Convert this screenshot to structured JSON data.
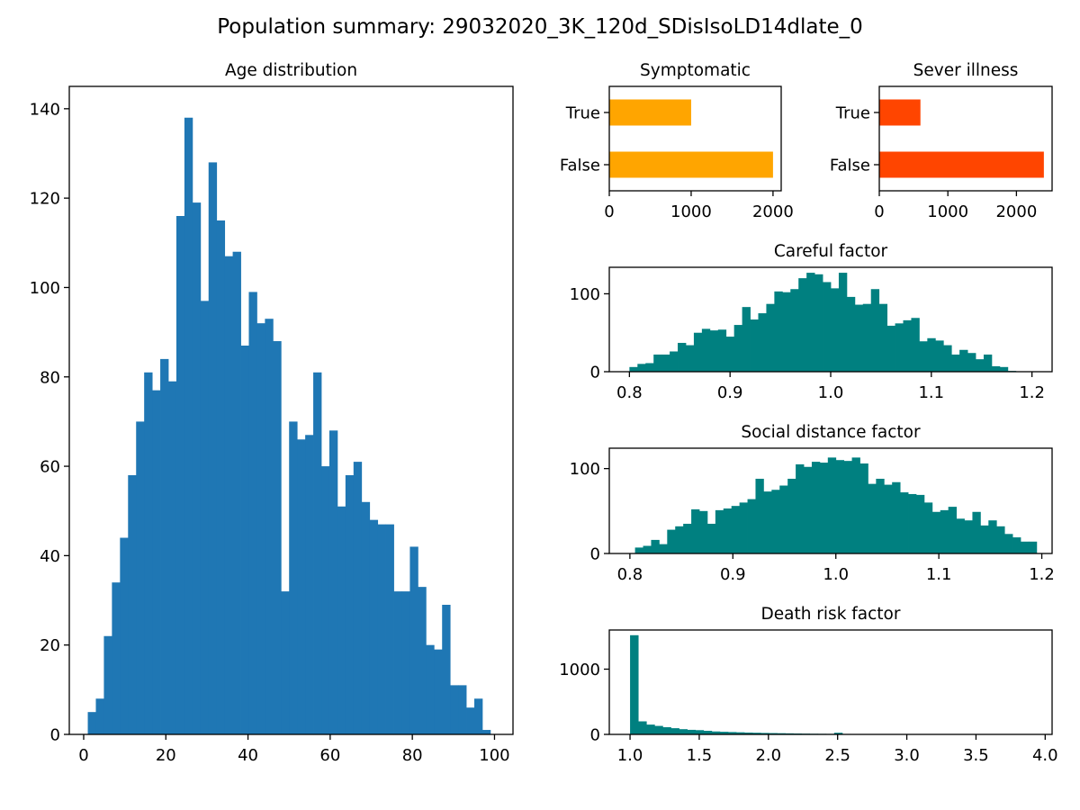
{
  "figure": {
    "title": "Population summary: 29032020_3K_120d_SDisIsoLD14dlate_0"
  },
  "chart_data": [
    {
      "id": "age",
      "type": "bar",
      "subtype": "histogram",
      "title": "Age distribution",
      "color": "#1f77b4",
      "xlim": [
        -3.5,
        104.5
      ],
      "ylim": [
        0,
        145
      ],
      "xticks": [
        0,
        20,
        40,
        60,
        80,
        100
      ],
      "yticks": [
        0,
        20,
        40,
        60,
        80,
        100,
        120,
        140
      ],
      "bin_start": 1,
      "bin_width": 1.96,
      "values": [
        5,
        8,
        22,
        34,
        44,
        58,
        70,
        81,
        77,
        84,
        79,
        116,
        138,
        119,
        97,
        128,
        115,
        107,
        108,
        87,
        99,
        92,
        93,
        88,
        32,
        70,
        66,
        67,
        81,
        60,
        68,
        51,
        58,
        61,
        52,
        48,
        47,
        47,
        32,
        32,
        42,
        33,
        20,
        19,
        29,
        11,
        11,
        6,
        8,
        1
      ]
    },
    {
      "id": "symptomatic",
      "type": "bar",
      "orientation": "horizontal",
      "title": "Symptomatic",
      "color": "#ffa500",
      "categories": [
        "True",
        "False"
      ],
      "values": [
        1000,
        2000
      ],
      "xlim": [
        0,
        2100
      ],
      "xticks": [
        0,
        1000,
        2000
      ]
    },
    {
      "id": "severe",
      "type": "bar",
      "orientation": "horizontal",
      "title": "Sever illness",
      "color": "#ff4500",
      "categories": [
        "True",
        "False"
      ],
      "values": [
        600,
        2400
      ],
      "xlim": [
        0,
        2520
      ],
      "xticks": [
        0,
        1000,
        2000
      ]
    },
    {
      "id": "careful",
      "type": "bar",
      "subtype": "histogram",
      "title": "Careful factor",
      "color": "#008080",
      "xlim": [
        0.78,
        1.22
      ],
      "ylim": [
        0,
        134
      ],
      "xticks": [
        0.8,
        0.9,
        1.0,
        1.1,
        1.2
      ],
      "xtick_labels": [
        "0.8",
        "0.9",
        "1.0",
        "1.1",
        "1.2"
      ],
      "yticks": [
        0,
        100
      ],
      "bin_start": 0.8,
      "bin_width": 0.008,
      "values": [
        6,
        10,
        11,
        22,
        22,
        26,
        37,
        34,
        50,
        55,
        53,
        54,
        45,
        60,
        83,
        67,
        75,
        87,
        103,
        102,
        106,
        120,
        127,
        125,
        115,
        107,
        127,
        96,
        86,
        87,
        106,
        87,
        59,
        62,
        66,
        69,
        39,
        43,
        40,
        34,
        22,
        28,
        24,
        16,
        22,
        7,
        6,
        1,
        0,
        0
      ]
    },
    {
      "id": "social",
      "type": "bar",
      "subtype": "histogram",
      "title": "Social distance factor",
      "color": "#008080",
      "xlim": [
        0.78,
        1.21
      ],
      "ylim": [
        0,
        124
      ],
      "xticks": [
        0.8,
        0.9,
        1.0,
        1.1,
        1.2
      ],
      "xtick_labels": [
        "0.8",
        "0.9",
        "1.0",
        "1.1",
        "1.2"
      ],
      "yticks": [
        0,
        100
      ],
      "bin_start": 0.805,
      "bin_width": 0.0078,
      "values": [
        7,
        9,
        16,
        11,
        28,
        32,
        35,
        52,
        50,
        35,
        51,
        53,
        56,
        60,
        64,
        88,
        73,
        75,
        80,
        88,
        105,
        102,
        108,
        107,
        113,
        110,
        109,
        113,
        106,
        82,
        88,
        81,
        84,
        72,
        70,
        69,
        60,
        49,
        51,
        55,
        41,
        39,
        49,
        33,
        39,
        32,
        23,
        19,
        14,
        14
      ]
    },
    {
      "id": "death",
      "type": "bar",
      "subtype": "histogram",
      "title": "Death risk factor",
      "color": "#008080",
      "xlim": [
        0.85,
        4.05
      ],
      "ylim": [
        0,
        1600
      ],
      "xticks": [
        1.0,
        1.5,
        2.0,
        2.5,
        3.0,
        3.5,
        4.0
      ],
      "xtick_labels": [
        "1.0",
        "1.5",
        "2.0",
        "2.5",
        "3.0",
        "3.5",
        "4.0"
      ],
      "yticks": [
        0,
        1000
      ],
      "bin_start": 1.0,
      "bin_width": 0.059,
      "values": [
        1520,
        200,
        150,
        130,
        110,
        95,
        80,
        70,
        65,
        55,
        45,
        40,
        36,
        32,
        28,
        25,
        22,
        20,
        18,
        16,
        14,
        12,
        10,
        9,
        8,
        25,
        7,
        6,
        6,
        5,
        5,
        4,
        4,
        4,
        3,
        3,
        3,
        3,
        2,
        2,
        2,
        2,
        2,
        1,
        1,
        1,
        1,
        1,
        1,
        1
      ]
    }
  ]
}
